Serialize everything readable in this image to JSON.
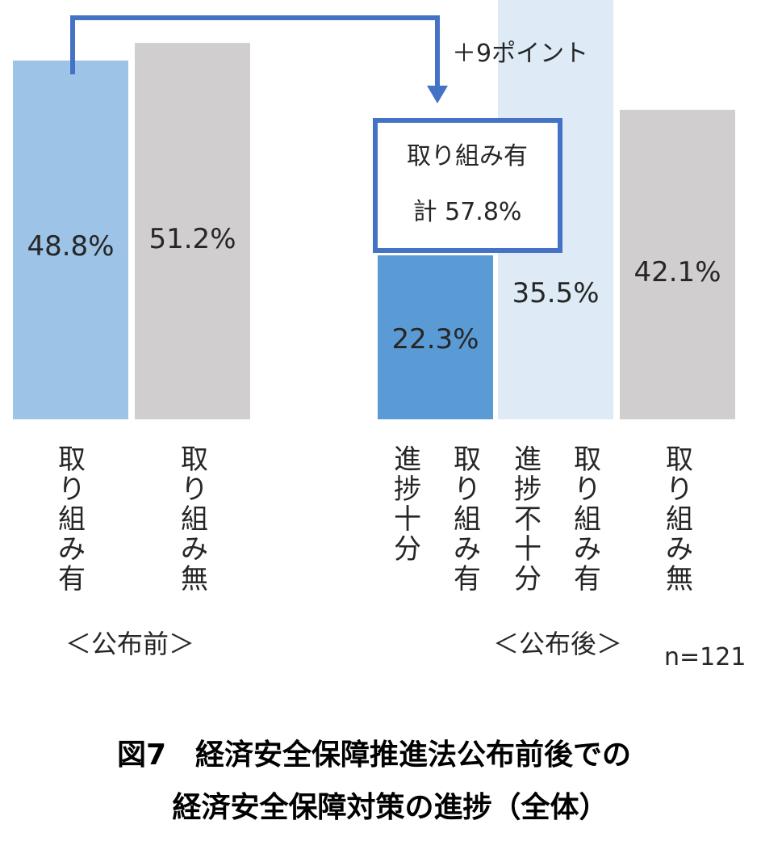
{
  "chart_data": {
    "type": "bar",
    "ylim": [
      0,
      60
    ],
    "bars": [
      {
        "group": "before",
        "category": "取り組み有",
        "value": 48.8,
        "label": "48.8%",
        "color": "#9dc3e6"
      },
      {
        "group": "before",
        "category": "取り組み無",
        "value": 51.2,
        "label": "51.2%",
        "color": "#d0cece"
      },
      {
        "group": "after",
        "category": "進捗十分",
        "value": 22.3,
        "label": "22.3%",
        "color": "#5b9bd5"
      },
      {
        "group": "after",
        "category": "進捗不十分",
        "value": 35.5,
        "label": "35.5%",
        "color": "#deebf7",
        "stacked_on": "進捗十分"
      },
      {
        "group": "after",
        "category": "取り組み無",
        "value": 42.1,
        "label": "42.1%",
        "color": "#d0cece"
      }
    ],
    "category_labels": [
      {
        "text": "取り組み有",
        "for": "before-yes"
      },
      {
        "text": "取り組み無",
        "for": "before-no"
      },
      {
        "text": "進捗十分",
        "for": "after-enough"
      },
      {
        "text": "取り組み有",
        "for": "after-yes"
      },
      {
        "text": "進捗不十分",
        "for": "after-not-enough"
      },
      {
        "text": "取り組み有",
        "for": "after-yes"
      },
      {
        "text": "取り組み無",
        "for": "after-no"
      }
    ],
    "group_labels": [
      "＜公布前＞",
      "＜公布後＞"
    ],
    "total_box": {
      "line1": "取り組み有",
      "line2": "計 57.8%",
      "value": 57.8
    },
    "change_annotation": "＋9ポイント",
    "sample_size": "n=121",
    "accent_color": "#4472c4"
  },
  "caption": {
    "line1": "図7　経済安全保障推進法公布前後での",
    "line2": "経済安全保障対策の進捗（全体）"
  }
}
